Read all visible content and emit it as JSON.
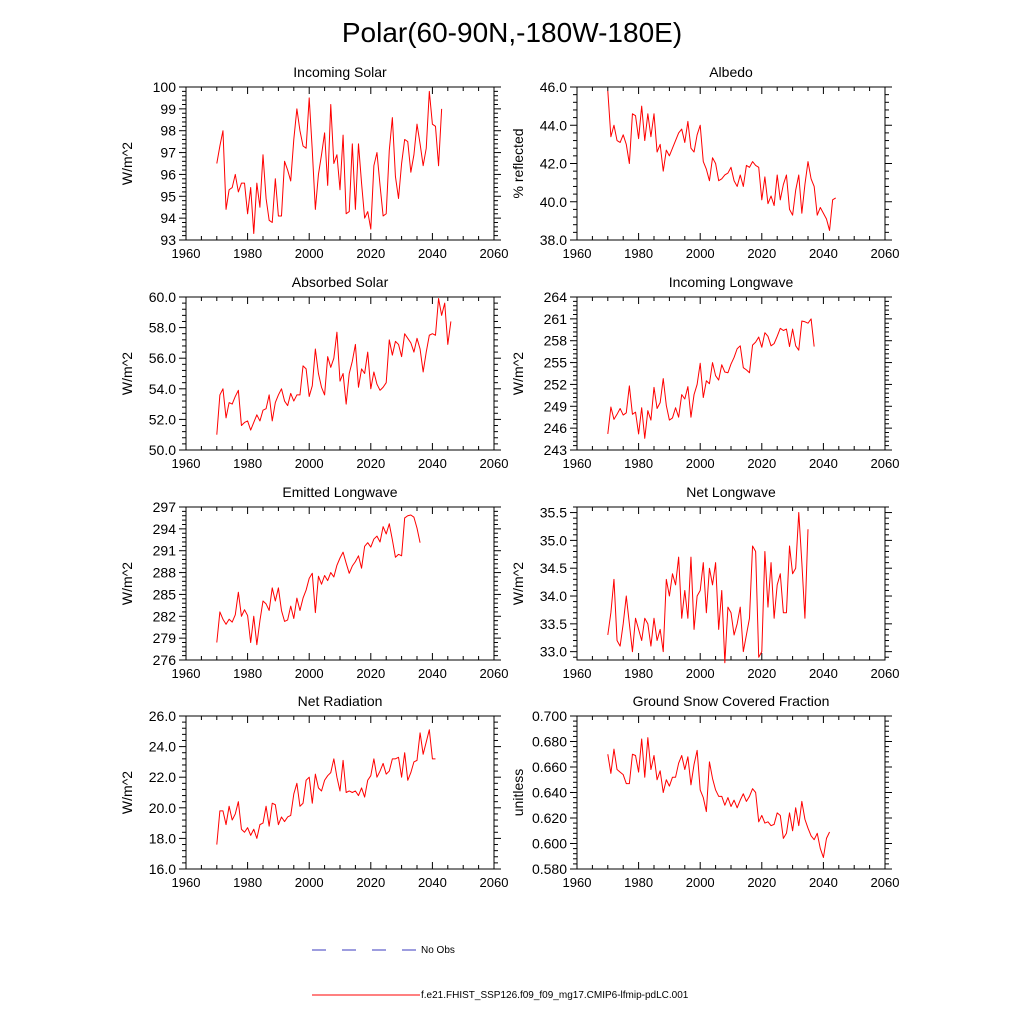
{
  "figure": {
    "title": "Polar(60-90N,-180W-180E)",
    "legend": {
      "obs_label": "No Obs",
      "obs_color": "#3b3bbf",
      "model_label": "f.e21.FHIST_SSP126.f09_f09_mg17.CMIP6-lfmip-pdLC.001",
      "model_color": "#ff0000"
    }
  },
  "chart_data": [
    {
      "type": "line",
      "title": "Incoming Solar",
      "ylabel": "W/m^2",
      "xlim": [
        1960,
        2060
      ],
      "ylim": [
        93,
        100
      ],
      "xticks": [
        1960,
        1980,
        2000,
        2020,
        2040,
        2060
      ],
      "yticks": [
        "93",
        "94",
        "95",
        "96",
        "97",
        "98",
        "99",
        "100"
      ],
      "x_start": 1970,
      "series": [
        {
          "name": "f.e21.FHIST_SSP126.f09_f09_mg17.CMIP6-lfmip-pdLC.001",
          "values": [
            96.5,
            97.3,
            98.0,
            94.4,
            95.3,
            95.4,
            96.0,
            95.2,
            95.6,
            95.6,
            94.2,
            95.4,
            93.3,
            95.6,
            94.5,
            96.9,
            94.9,
            93.9,
            93.8,
            95.8,
            94.1,
            94.1,
            96.6,
            96.2,
            95.7,
            97.6,
            99.0,
            98.0,
            97.3,
            97.2,
            99.5,
            97.1,
            94.4,
            96.0,
            96.9,
            97.9,
            95.5,
            99.2,
            96.5,
            96.9,
            95.3,
            97.8,
            94.2,
            94.3,
            97.4,
            94.4,
            97.4,
            95.6,
            94.0,
            94.3,
            93.5,
            96.4,
            97.0,
            95.5,
            94.1,
            94.2,
            97.1,
            98.6,
            95.9,
            94.9,
            96.5,
            97.6,
            97.5,
            96.1,
            96.9,
            98.3,
            97.4,
            96.4,
            97.2,
            99.8,
            98.3,
            98.2,
            96.4,
            99.0
          ]
        }
      ]
    },
    {
      "type": "line",
      "title": "Albedo",
      "ylabel": "% reflected",
      "xlim": [
        1960,
        2060
      ],
      "ylim": [
        38,
        46
      ],
      "xticks": [
        1960,
        1980,
        2000,
        2020,
        2040,
        2060
      ],
      "yticks": [
        "38.0",
        "40.0",
        "42.0",
        "44.0",
        "46.0"
      ],
      "x_start": 1970,
      "series": [
        {
          "name": "f.e21.FHIST_SSP126.f09_f09_mg17.CMIP6-lfmip-pdLC.001",
          "values": [
            45.8,
            43.4,
            44.0,
            43.2,
            43.1,
            43.5,
            43.0,
            42.0,
            44.6,
            44.5,
            43.3,
            45.0,
            43.2,
            44.6,
            43.4,
            44.6,
            42.6,
            43.0,
            41.6,
            42.7,
            42.4,
            42.8,
            43.2,
            43.6,
            43.8,
            43.1,
            44.2,
            42.8,
            42.6,
            43.5,
            44.0,
            42.1,
            41.7,
            41.1,
            42.3,
            42.0,
            41.1,
            41.2,
            41.4,
            41.5,
            41.8,
            41.1,
            40.8,
            41.4,
            40.8,
            41.9,
            41.8,
            42.1,
            41.9,
            41.8,
            40.1,
            41.3,
            39.9,
            40.3,
            39.8,
            41.4,
            40.1,
            40.9,
            41.4,
            39.6,
            39.3,
            40.6,
            41.4,
            39.4,
            40.9,
            42.1,
            41.2,
            40.8,
            39.3,
            39.7,
            39.4,
            39.1,
            38.5,
            40.1,
            40.2
          ]
        }
      ]
    },
    {
      "type": "line",
      "title": "Absorbed Solar",
      "ylabel": "W/m^2",
      "xlim": [
        1960,
        2060
      ],
      "ylim": [
        50,
        60
      ],
      "xticks": [
        1960,
        1980,
        2000,
        2020,
        2040,
        2060
      ],
      "yticks": [
        "50.0",
        "52.0",
        "54.0",
        "56.0",
        "58.0",
        "60.0"
      ],
      "x_start": 1970,
      "series": [
        {
          "name": "f.e21.FHIST_SSP126.f09_f09_mg17.CMIP6-lfmip-pdLC.001",
          "values": [
            51.0,
            53.6,
            54.0,
            52.1,
            53.1,
            53.0,
            53.5,
            53.9,
            51.6,
            51.8,
            51.9,
            51.3,
            51.8,
            52.3,
            51.9,
            52.6,
            52.7,
            53.6,
            51.9,
            53.1,
            53.6,
            54.0,
            53.2,
            52.9,
            53.7,
            53.2,
            53.6,
            53.6,
            55.5,
            55.3,
            53.5,
            54.2,
            56.6,
            55.0,
            54.1,
            53.6,
            56.1,
            55.4,
            56.0,
            57.7,
            54.5,
            55.0,
            53.0,
            55.0,
            55.8,
            56.9,
            54.1,
            55.3,
            55.0,
            56.4,
            54.0,
            55.1,
            54.3,
            53.9,
            54.1,
            54.4,
            57.2,
            56.2,
            57.1,
            56.9,
            56.1,
            57.6,
            57.3,
            57.0,
            56.4,
            57.3,
            56.6,
            55.1,
            56.4,
            57.5,
            57.6,
            57.5,
            59.9,
            58.8,
            59.6,
            56.9,
            58.4
          ]
        }
      ]
    },
    {
      "type": "line",
      "title": "Incoming Longwave",
      "ylabel": "W/m^2",
      "xlim": [
        1960,
        2060
      ],
      "ylim": [
        243,
        264
      ],
      "xticks": [
        1960,
        1980,
        2000,
        2020,
        2040,
        2060
      ],
      "yticks": [
        "243",
        "246",
        "249",
        "252",
        "255",
        "258",
        "261",
        "264"
      ],
      "x_start": 1970,
      "series": [
        {
          "name": "f.e21.FHIST_SSP126.f09_f09_mg17.CMIP6-lfmip-pdLC.001",
          "values": [
            245.2,
            248.9,
            247.2,
            247.9,
            248.7,
            247.8,
            248.1,
            251.8,
            247.9,
            248.2,
            245.2,
            248.8,
            244.6,
            248.4,
            247.1,
            251.6,
            248.7,
            249.5,
            252.8,
            249.1,
            247.1,
            247.4,
            248.8,
            247.5,
            250.6,
            250.0,
            251.7,
            247.5,
            250.6,
            252.0,
            254.9,
            250.2,
            252.5,
            252.1,
            255.0,
            253.2,
            252.6,
            254.7,
            253.7,
            253.6,
            254.8,
            255.7,
            256.9,
            257.3,
            254.3,
            254.0,
            253.6,
            257.4,
            257.8,
            258.5,
            257.1,
            259.1,
            258.6,
            257.3,
            257.6,
            258.6,
            259.7,
            259.4,
            259.6,
            257.2,
            259.6,
            257.3,
            256.7,
            260.7,
            260.6,
            260.4,
            261.0,
            257.2
          ]
        }
      ]
    },
    {
      "type": "line",
      "title": "Emitted Longwave",
      "ylabel": "W/m^2",
      "xlim": [
        1960,
        2060
      ],
      "ylim": [
        276,
        297
      ],
      "xticks": [
        1960,
        1980,
        2000,
        2020,
        2040,
        2060
      ],
      "yticks": [
        "276",
        "279",
        "282",
        "285",
        "288",
        "291",
        "294",
        "297"
      ],
      "x_start": 1970,
      "series": [
        {
          "name": "f.e21.FHIST_SSP126.f09_f09_mg17.CMIP6-lfmip-pdLC.001",
          "values": [
            278.4,
            282.6,
            281.6,
            280.9,
            281.6,
            281.2,
            282.2,
            285.3,
            282.0,
            282.9,
            282.1,
            278.4,
            282.0,
            278.1,
            281.4,
            284.1,
            283.7,
            282.8,
            285.9,
            284.1,
            285.9,
            282.8,
            281.3,
            281.5,
            283.4,
            281.7,
            284.5,
            282.8,
            284.5,
            285.6,
            287.2,
            287.9,
            282.5,
            287.5,
            286.4,
            287.6,
            286.9,
            288.0,
            287.4,
            289.0,
            290.0,
            290.8,
            289.3,
            287.9,
            288.9,
            289.5,
            290.3,
            288.6,
            291.6,
            292.1,
            291.5,
            292.6,
            293.0,
            292.2,
            294.3,
            293.3,
            294.7,
            292.5,
            290.1,
            290.5,
            290.3,
            295.5,
            295.8,
            295.9,
            295.6,
            294.1,
            292.1
          ]
        }
      ]
    },
    {
      "type": "line",
      "title": "Net Longwave",
      "ylabel": "W/m^2",
      "xlim": [
        1960,
        2060
      ],
      "ylim": [
        32.85,
        35.6
      ],
      "xticks": [
        1960,
        1980,
        2000,
        2020,
        2040,
        2060
      ],
      "yticks": [
        "33.0",
        "33.5",
        "34.0",
        "34.5",
        "35.0",
        "35.5"
      ],
      "x_start": 1970,
      "series": [
        {
          "name": "f.e21.FHIST_SSP126.f09_f09_mg17.CMIP6-lfmip-pdLC.001",
          "values": [
            33.3,
            33.7,
            34.3,
            33.2,
            33.1,
            33.5,
            34.0,
            33.5,
            33.0,
            33.6,
            33.4,
            33.2,
            33.6,
            33.5,
            33.1,
            33.6,
            33.2,
            33.4,
            33.0,
            34.3,
            34.0,
            34.4,
            34.2,
            34.7,
            33.6,
            34.1,
            33.6,
            34.7,
            33.4,
            34.0,
            34.1,
            34.6,
            33.7,
            34.5,
            34.2,
            34.6,
            33.4,
            34.1,
            32.8,
            33.8,
            33.7,
            33.3,
            33.5,
            33.8,
            33.0,
            33.3,
            33.6,
            34.9,
            34.8,
            32.9,
            33.0,
            34.8,
            33.8,
            34.6,
            33.6,
            34.2,
            34.4,
            33.7,
            33.7,
            34.9,
            34.4,
            34.5,
            35.5,
            34.6,
            33.6,
            35.2
          ]
        }
      ]
    },
    {
      "type": "line",
      "title": "Net Radiation",
      "ylabel": "W/m^2",
      "xlim": [
        1960,
        2060
      ],
      "ylim": [
        16,
        26
      ],
      "xticks": [
        1960,
        1980,
        2000,
        2020,
        2040,
        2060
      ],
      "yticks": [
        "16.0",
        "18.0",
        "20.0",
        "22.0",
        "24.0",
        "26.0"
      ],
      "x_start": 1970,
      "series": [
        {
          "name": "f.e21.FHIST_SSP126.f09_f09_mg17.CMIP6-lfmip-pdLC.001",
          "values": [
            17.6,
            19.8,
            19.8,
            18.9,
            20.1,
            19.2,
            19.6,
            20.4,
            18.6,
            18.4,
            18.7,
            18.2,
            18.6,
            18.0,
            18.9,
            19.0,
            20.1,
            18.8,
            20.3,
            20.2,
            18.9,
            19.4,
            19.1,
            19.4,
            19.5,
            20.9,
            21.6,
            20.1,
            20.3,
            21.8,
            22.0,
            20.3,
            22.2,
            21.3,
            21.1,
            21.8,
            22.1,
            22.3,
            23.2,
            22.0,
            21.1,
            23.1,
            21.0,
            21.1,
            21.0,
            21.1,
            20.8,
            21.3,
            20.7,
            21.8,
            22.1,
            23.2,
            22.0,
            22.4,
            22.9,
            22.2,
            22.4,
            23.2,
            23.2,
            23.3,
            22.0,
            23.6,
            21.8,
            22.3,
            23.0,
            23.1,
            24.9,
            23.5,
            24.3,
            25.1,
            23.2,
            23.2
          ]
        }
      ]
    },
    {
      "type": "line",
      "title": "Ground Snow Covered Fraction",
      "ylabel": "unitless",
      "xlim": [
        1960,
        2060
      ],
      "ylim": [
        0.58,
        0.7
      ],
      "xticks": [
        1960,
        1980,
        2000,
        2020,
        2040,
        2060
      ],
      "yticks": [
        "0.580",
        "0.600",
        "0.620",
        "0.640",
        "0.660",
        "0.680",
        "0.700"
      ],
      "x_start": 1970,
      "series": [
        {
          "name": "f.e21.FHIST_SSP126.f09_f09_mg17.CMIP6-lfmip-pdLC.001",
          "values": [
            0.67,
            0.655,
            0.674,
            0.658,
            0.656,
            0.654,
            0.647,
            0.647,
            0.67,
            0.669,
            0.656,
            0.682,
            0.652,
            0.683,
            0.658,
            0.669,
            0.65,
            0.657,
            0.64,
            0.65,
            0.645,
            0.652,
            0.652,
            0.663,
            0.669,
            0.658,
            0.668,
            0.646,
            0.662,
            0.673,
            0.642,
            0.636,
            0.625,
            0.664,
            0.651,
            0.642,
            0.637,
            0.637,
            0.63,
            0.636,
            0.629,
            0.634,
            0.628,
            0.634,
            0.639,
            0.633,
            0.637,
            0.643,
            0.64,
            0.617,
            0.622,
            0.616,
            0.617,
            0.614,
            0.615,
            0.624,
            0.622,
            0.604,
            0.608,
            0.624,
            0.61,
            0.628,
            0.614,
            0.633,
            0.619,
            0.612,
            0.606,
            0.603,
            0.608,
            0.596,
            0.589,
            0.604,
            0.609
          ]
        }
      ]
    }
  ]
}
